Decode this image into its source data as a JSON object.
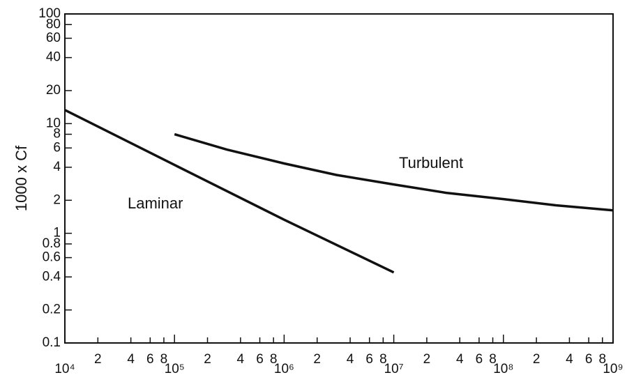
{
  "chart_data": {
    "type": "line",
    "ylabel": "1000 x Cf",
    "xscale": "log",
    "yscale": "log",
    "xlim": [
      10000,
      1000000000
    ],
    "ylim": [
      0.1,
      100
    ],
    "xticks": [
      {
        "value": 10000,
        "label": "10⁴"
      },
      {
        "value": 20000,
        "label": "2"
      },
      {
        "value": 40000,
        "label": "4"
      },
      {
        "value": 60000,
        "label": "6"
      },
      {
        "value": 80000,
        "label": "8"
      },
      {
        "value": 100000,
        "label": "10⁵"
      },
      {
        "value": 200000,
        "label": "2"
      },
      {
        "value": 400000,
        "label": "4"
      },
      {
        "value": 600000,
        "label": "6"
      },
      {
        "value": 800000,
        "label": "8"
      },
      {
        "value": 1000000,
        "label": "10⁶"
      },
      {
        "value": 2000000,
        "label": "2"
      },
      {
        "value": 4000000,
        "label": "4"
      },
      {
        "value": 6000000,
        "label": "6"
      },
      {
        "value": 8000000,
        "label": "8"
      },
      {
        "value": 10000000,
        "label": "10⁷"
      },
      {
        "value": 20000000,
        "label": "2"
      },
      {
        "value": 40000000,
        "label": "4"
      },
      {
        "value": 60000000,
        "label": "6"
      },
      {
        "value": 80000000,
        "label": "8"
      },
      {
        "value": 100000000,
        "label": "10⁸"
      },
      {
        "value": 200000000,
        "label": "2"
      },
      {
        "value": 400000000,
        "label": "4"
      },
      {
        "value": 600000000,
        "label": "6"
      },
      {
        "value": 800000000,
        "label": "8"
      },
      {
        "value": 1000000000,
        "label": "10⁹"
      }
    ],
    "yticks": [
      0.1,
      0.2,
      0.4,
      0.6,
      0.8,
      1,
      2,
      4,
      6,
      8,
      10,
      20,
      40,
      60,
      80,
      100
    ],
    "series": [
      {
        "name": "Laminar",
        "color": "#111111",
        "x": [
          10000,
          100000,
          1000000,
          10000000
        ],
        "values": [
          13.3,
          4.2,
          1.33,
          0.44
        ]
      },
      {
        "name": "Turbulent",
        "color": "#111111",
        "x": [
          100000,
          300000,
          1000000,
          3000000,
          10000000,
          30000000,
          100000000,
          300000000,
          1000000000
        ],
        "values": [
          8.0,
          5.8,
          4.33,
          3.4,
          2.79,
          2.34,
          2.05,
          1.8,
          1.62
        ]
      }
    ]
  }
}
